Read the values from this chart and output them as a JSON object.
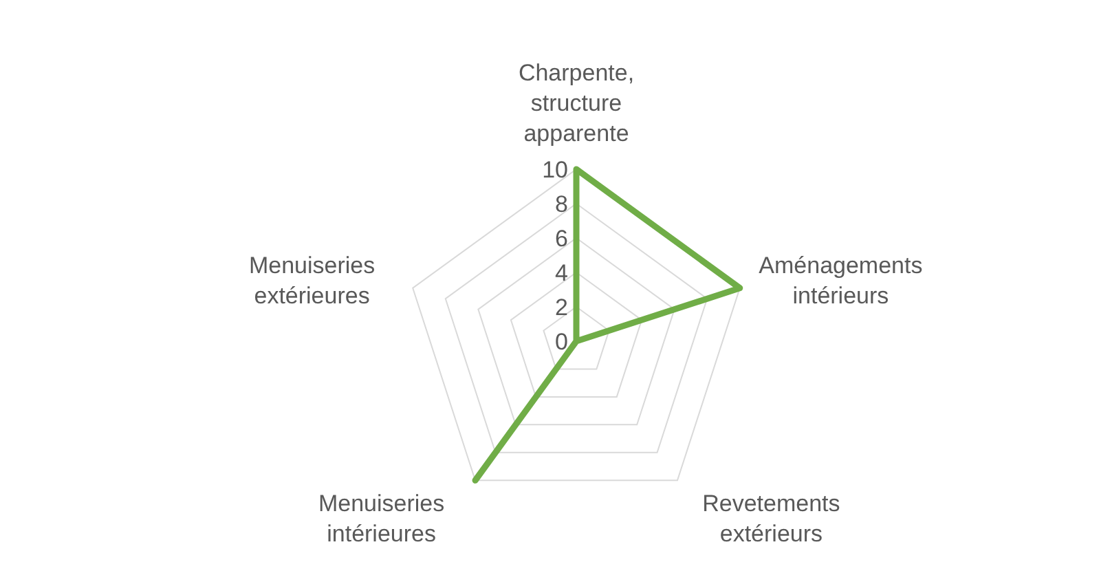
{
  "chart_data": {
    "type": "radar",
    "categories": [
      "Charpente, structure apparente",
      "Aménagements intérieurs",
      "Revetements extérieurs",
      "Menuiseries intérieures",
      "Menuiseries extérieures"
    ],
    "series": [
      {
        "color": "#70ad47",
        "values": [
          10,
          10,
          0,
          10,
          0
        ]
      }
    ],
    "ylim": [
      0,
      10
    ],
    "yticks": [
      0,
      2,
      4,
      6,
      8,
      10
    ],
    "grid": true,
    "marker": "none",
    "line_style": "solid"
  }
}
